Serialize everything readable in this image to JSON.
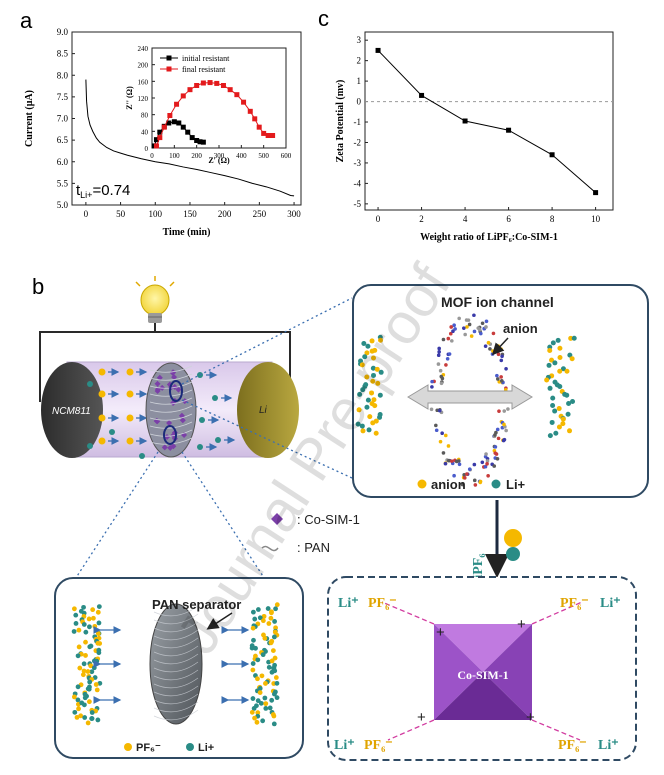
{
  "panel_labels": {
    "a": "a",
    "b": "b",
    "c": "c"
  },
  "watermark": "Journal Pre-proof",
  "colors": {
    "cathode": "#3a3a3a",
    "lithium": "#9c8d2b",
    "pan_tube": "#e3d6ef",
    "anion": "#f5b800",
    "li": "#2a8c86",
    "mof": "#9b59c8",
    "box_stroke": "#2f4a63"
  },
  "chart_data": [
    {
      "id": "a",
      "type": "line",
      "xlabel": "Time (min)",
      "ylabel": "Current (μA)",
      "xlim": [
        -20,
        310
      ],
      "ylim": [
        5.0,
        9.0
      ],
      "xticks": [
        0,
        50,
        100,
        150,
        200,
        250,
        300
      ],
      "yticks": [
        5.0,
        5.5,
        6.0,
        6.5,
        7.0,
        7.5,
        8.0,
        8.5,
        9.0
      ],
      "x": [
        0,
        1,
        3,
        6,
        10,
        15,
        20,
        30,
        40,
        50,
        60,
        80,
        100,
        120,
        140,
        160,
        180,
        200,
        220,
        240,
        260,
        280,
        295,
        300
      ],
      "y": [
        7.9,
        7.4,
        7.05,
        6.85,
        6.7,
        6.55,
        6.45,
        6.33,
        6.25,
        6.2,
        6.15,
        6.07,
        6.0,
        5.95,
        5.88,
        5.82,
        5.75,
        5.68,
        5.6,
        5.5,
        5.42,
        5.32,
        5.22,
        5.21
      ],
      "annotation": {
        "prefix": "t",
        "sub": "Li+",
        "suffix": "=0.74"
      },
      "inset": {
        "type": "line",
        "xlabel": "Z' (Ω)",
        "ylabel": "Z'' (Ω)",
        "xlim": [
          0,
          600
        ],
        "ylim": [
          0,
          240
        ],
        "xticks": [
          0,
          100,
          200,
          300,
          400,
          500,
          600
        ],
        "yticks": [
          0,
          40,
          80,
          120,
          160,
          200,
          240
        ],
        "series": [
          {
            "name": "initial resistant",
            "color": "#000000",
            "x": [
              10,
              20,
              35,
              55,
              75,
              100,
              120,
              140,
              160,
              180,
              200,
              215,
              230
            ],
            "y": [
              5,
              20,
              38,
              52,
              60,
              63,
              60,
              50,
              38,
              25,
              18,
              15,
              14
            ]
          },
          {
            "name": "final resistant",
            "color": "#e31a1c",
            "x": [
              20,
              35,
              55,
              80,
              110,
              140,
              170,
              200,
              230,
              260,
              290,
              320,
              350,
              380,
              410,
              440,
              460,
              480,
              500,
              520,
              540
            ],
            "y": [
              5,
              25,
              50,
              78,
              105,
              125,
              140,
              150,
              156,
              157,
              155,
              150,
              140,
              128,
              110,
              88,
              70,
              50,
              35,
              30,
              30
            ]
          }
        ]
      }
    },
    {
      "id": "c",
      "type": "line",
      "xlabel": "Weight ratio of LiPF₆:Co-SIM-1",
      "ylabel": "Zeta Potential (mv)",
      "xlim": [
        -0.6,
        10.8
      ],
      "ylim": [
        -5.3,
        3.4
      ],
      "xticks": [
        0,
        2,
        4,
        6,
        8,
        10
      ],
      "yticks": [
        3,
        2,
        1,
        0,
        -1,
        -2,
        -3,
        -4,
        -5
      ],
      "x": [
        0,
        2,
        4,
        6,
        8,
        10
      ],
      "y": [
        2.5,
        0.3,
        -0.95,
        -1.4,
        -2.6,
        -4.45
      ],
      "zero_line": true
    }
  ],
  "diagram": {
    "cathode_label": "NCM811",
    "anode_label": "Li",
    "mof_box": {
      "title": "MOF ion channel",
      "arrow_label": "anion",
      "legend": [
        {
          "label": "anion"
        },
        {
          "label": "Li+"
        }
      ]
    },
    "symbol_legend": [
      {
        "label": ": Co-SIM-1"
      },
      {
        "label": ": PAN"
      }
    ],
    "pan_box": {
      "title": "PAN separator",
      "legend": [
        {
          "label": "PF₆⁻"
        },
        {
          "label": "Li+"
        }
      ]
    },
    "reaction_arrow_label": "LiPF₆",
    "co_box": {
      "center_label": "Co-SIM-1",
      "corner_labels": {
        "tl": [
          "Li⁺",
          "PF₆⁻"
        ],
        "tr": [
          "PF₆⁻",
          "Li⁺"
        ],
        "bl": [
          "Li⁺",
          "PF₆⁻"
        ],
        "br": [
          "PF₆⁻",
          "Li⁺"
        ]
      },
      "plus": "+"
    }
  }
}
